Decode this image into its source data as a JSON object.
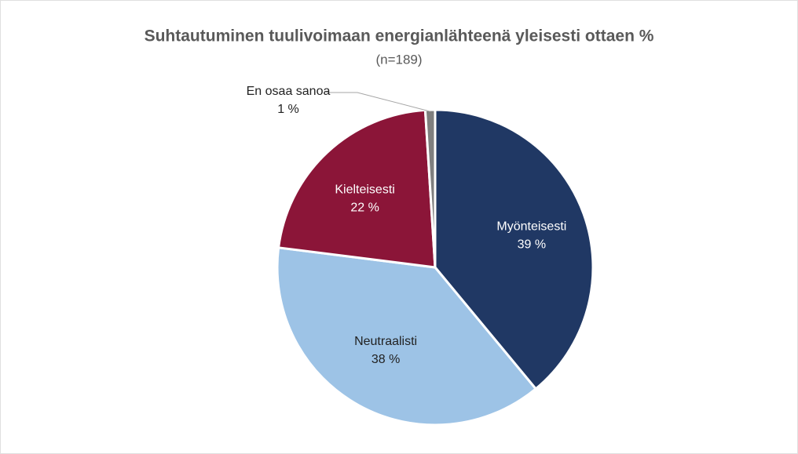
{
  "chart_data": {
    "type": "pie",
    "title": "Suhtautuminen tuulivoimaan energianlähteenä yleisesti ottaen %",
    "subtitle": "(n=189)",
    "categories": [
      "Myönteisesti",
      "Neutraalisti",
      "Kielteisesti",
      "En osaa sanoa"
    ],
    "values": [
      39,
      38,
      22,
      1
    ],
    "value_labels": [
      "39 %",
      "38 %",
      "22 %",
      "1 %"
    ],
    "colors": [
      "#203864",
      "#9dc3e6",
      "#8b1538",
      "#7f7f7f"
    ]
  }
}
